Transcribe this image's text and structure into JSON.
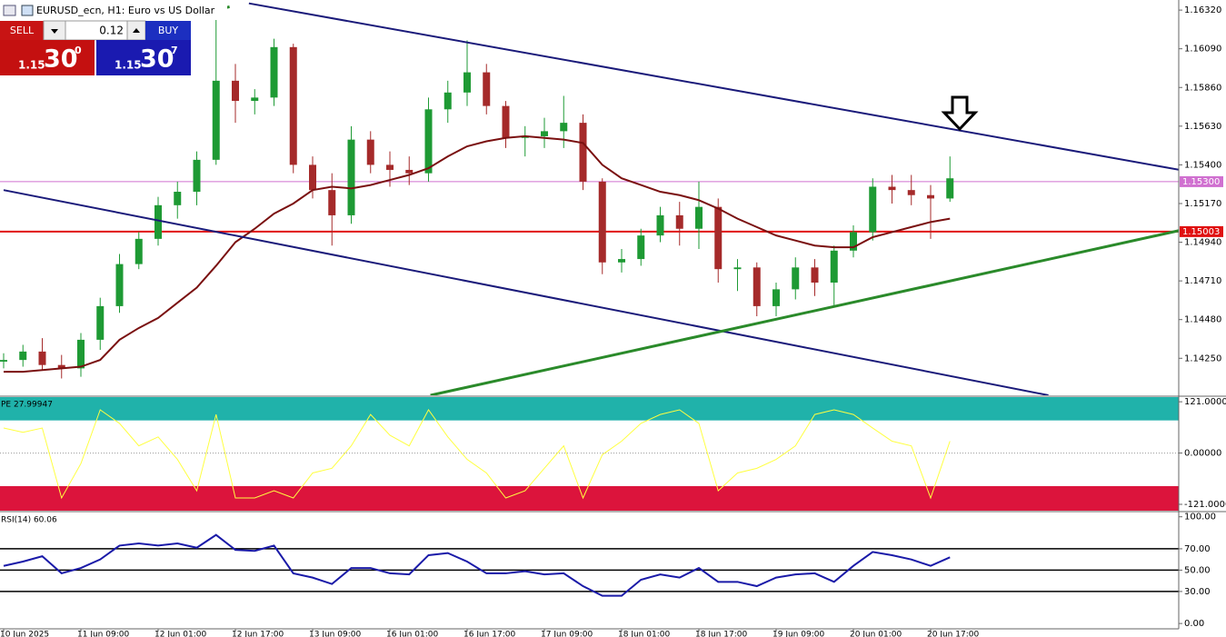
{
  "header": {
    "symbol": "EURUSD_ecn, H1:  Euro vs US Dollar"
  },
  "trade_panel": {
    "sell": "SELL",
    "lot": "0.12",
    "buy": "BUY",
    "sell_price": {
      "prefix": "1.15",
      "big": "30",
      "pip": "0"
    },
    "buy_price": {
      "prefix": "1.15",
      "big": "30",
      "pip": "7"
    }
  },
  "chart_data": [
    {
      "type": "candlestick",
      "categories": [
        "10 Jun 2025",
        null,
        null,
        null,
        "11 Jun 09:00",
        null,
        null,
        null,
        "12 Jun 01:00",
        null,
        null,
        null,
        "12 Jun 17:00",
        null,
        null,
        null,
        "13 Jun 09:00",
        null,
        null,
        null,
        "16 Jun 01:00",
        null,
        null,
        null,
        "16 Jun 17:00",
        null,
        null,
        null,
        "17 Jun 09:00",
        null,
        null,
        null,
        "18 Jun 01:00",
        null,
        null,
        null,
        "18 Jun 17:00",
        null,
        null,
        null,
        "19 Jun 09:00",
        null,
        null,
        null,
        "20 Jun 01:00",
        null,
        null,
        null,
        "20 Jun 17:00",
        null
      ],
      "open": [
        1.1423,
        1.1424,
        1.1429,
        1.1421,
        1.1419,
        1.1436,
        1.1456,
        1.1481,
        1.1496,
        1.1516,
        1.1524,
        1.1543,
        1.159,
        1.1578,
        1.158,
        1.161,
        1.154,
        1.1525,
        1.151,
        1.1555,
        1.154,
        1.1537,
        1.1535,
        1.1573,
        1.1583,
        1.1595,
        1.1575,
        1.1556,
        1.1557,
        1.156,
        1.1565,
        1.153,
        1.1482,
        1.1484,
        1.1498,
        1.151,
        1.1502,
        1.1515,
        1.1478,
        1.1479,
        1.1456,
        1.1466,
        1.1479,
        1.147,
        1.1489,
        1.15,
        1.1527,
        1.1525,
        1.1522,
        1.152
      ],
      "high": [
        1.1428,
        1.1433,
        1.1437,
        1.1427,
        1.144,
        1.1461,
        1.1487,
        1.15,
        1.1521,
        1.153,
        1.1548,
        1.163,
        1.16,
        1.1585,
        1.1615,
        1.1612,
        1.1545,
        1.1535,
        1.1563,
        1.156,
        1.1548,
        1.1545,
        1.158,
        1.159,
        1.1614,
        1.16,
        1.1578,
        1.1563,
        1.1568,
        1.1581,
        1.157,
        1.1532,
        1.149,
        1.1502,
        1.1515,
        1.1518,
        1.153,
        1.152,
        1.1484,
        1.1482,
        1.147,
        1.1485,
        1.1484,
        1.1492,
        1.1504,
        1.1532,
        1.1534,
        1.1534,
        1.1528,
        1.1545
      ],
      "low": [
        1.1419,
        1.142,
        1.1418,
        1.1413,
        1.1414,
        1.143,
        1.1452,
        1.1478,
        1.1492,
        1.1508,
        1.1516,
        1.154,
        1.1565,
        1.157,
        1.1575,
        1.1535,
        1.152,
        1.1492,
        1.1505,
        1.1535,
        1.1527,
        1.1528,
        1.153,
        1.1565,
        1.1575,
        1.157,
        1.155,
        1.1545,
        1.155,
        1.155,
        1.1525,
        1.1475,
        1.1476,
        1.148,
        1.1494,
        1.1492,
        1.149,
        1.147,
        1.1465,
        1.145,
        1.145,
        1.146,
        1.1462,
        1.1456,
        1.1485,
        1.1495,
        1.1517,
        1.1516,
        1.1496,
        1.1518
      ],
      "close": [
        1.1424,
        1.1429,
        1.1421,
        1.1419,
        1.1436,
        1.1456,
        1.1481,
        1.1496,
        1.1516,
        1.1524,
        1.1543,
        1.159,
        1.1578,
        1.158,
        1.161,
        1.154,
        1.1525,
        1.151,
        1.1555,
        1.154,
        1.1537,
        1.1535,
        1.1573,
        1.1583,
        1.1595,
        1.1575,
        1.1556,
        1.1557,
        1.156,
        1.1565,
        1.153,
        1.1482,
        1.1484,
        1.1498,
        1.151,
        1.1502,
        1.1515,
        1.1478,
        1.1479,
        1.1456,
        1.1466,
        1.1479,
        1.147,
        1.1489,
        1.15,
        1.1527,
        1.1525,
        1.1522,
        1.152,
        1.1532
      ],
      "up_color": "#1e9a34",
      "down_color": "#a52a2a",
      "ma": {
        "color": "#7a1010",
        "values": [
          1.1417,
          1.1417,
          1.1418,
          1.1419,
          1.142,
          1.1424,
          1.1436,
          1.1443,
          1.1449,
          1.1458,
          1.1467,
          1.148,
          1.1494,
          1.1502,
          1.1511,
          1.1517,
          1.1525,
          1.1527,
          1.1526,
          1.1528,
          1.1531,
          1.1534,
          1.1538,
          1.1545,
          1.1551,
          1.1554,
          1.1556,
          1.1557,
          1.1556,
          1.1555,
          1.1553,
          1.154,
          1.1532,
          1.1528,
          1.1524,
          1.1522,
          1.1519,
          1.1514,
          1.1508,
          1.1503,
          1.1498,
          1.1495,
          1.1492,
          1.1491,
          1.1491,
          1.1497,
          1.15,
          1.1503,
          1.1506,
          1.1508
        ]
      },
      "hlines": [
        {
          "value": 1.153,
          "label": "1.15300",
          "color": "#d070d0"
        },
        {
          "value": 1.15003,
          "label": "1.15003",
          "color": "#e01010"
        }
      ],
      "trendlines": [
        {
          "color": "#1a1a7a",
          "points": [
            [
              12.7,
              1.1636
            ],
            [
              60.9,
              1.1537
            ]
          ]
        },
        {
          "color": "#1a1a7a",
          "points": [
            [
              0,
              1.1525
            ],
            [
              54.1,
              1.1403
            ]
          ]
        },
        {
          "color": "#2a8a2a",
          "points": [
            [
              22.1,
              1.1403
            ],
            [
              60.9,
              1.1501
            ]
          ]
        },
        {
          "color": "#2a8a2a",
          "points": [
            [
              9.2,
              1.1627
            ],
            [
              11.7,
              1.1634
            ]
          ]
        }
      ],
      "ylim": [
        1.1403,
        1.1638
      ],
      "yticks": [
        {
          "value": 1.1632,
          "label": "1.16320"
        },
        {
          "value": 1.1609,
          "label": "1.16090"
        },
        {
          "value": 1.1586,
          "label": "1.15860"
        },
        {
          "value": 1.1563,
          "label": "1.15630"
        },
        {
          "value": 1.154,
          "label": "1.15400"
        },
        {
          "value": 1.1517,
          "label": "1.15170"
        },
        {
          "value": 1.1494,
          "label": "1.14940"
        },
        {
          "value": 1.1471,
          "label": "1.14710"
        },
        {
          "value": 1.1448,
          "label": "1.14480"
        },
        {
          "value": 1.1425,
          "label": "1.14250"
        }
      ]
    },
    {
      "type": "line",
      "label": "PE 27.99947",
      "color": "#ffff40",
      "values": [
        59,
        49,
        59,
        -106,
        -25,
        102,
        70,
        17,
        38,
        -15,
        -89,
        91,
        -106,
        -106,
        -89,
        -106,
        -47,
        -36,
        17,
        91,
        42,
        17,
        102,
        38,
        -15,
        -47,
        -106,
        -89,
        -36,
        17,
        -106,
        -4,
        28,
        70,
        91,
        102,
        70,
        -89,
        -47,
        -36,
        -15,
        17,
        91,
        102,
        91,
        59,
        28,
        17,
        -106,
        28
      ],
      "bands": [
        {
          "from": 77,
          "to": 132,
          "color": "#20b2aa"
        },
        {
          "from": -136,
          "to": -78,
          "color": "#dc143c"
        }
      ],
      "levels": [
        0
      ],
      "level_style": "dotted",
      "ylim": [
        -136,
        132
      ],
      "yticks": [
        {
          "value": 121,
          "label": "121.00000"
        },
        {
          "value": 0,
          "label": "0.00000"
        },
        {
          "value": -121,
          "label": "-121.00000"
        }
      ]
    },
    {
      "type": "line",
      "label": "RSI(14) 60.06",
      "color": "#1a1aa8",
      "values": [
        54,
        58,
        63,
        47,
        52,
        60,
        73,
        75,
        73,
        75,
        71,
        83,
        69,
        68,
        73,
        47,
        43,
        37,
        52,
        52,
        47,
        46,
        64,
        66,
        58,
        47,
        47,
        49,
        46,
        47,
        35,
        26,
        26,
        41,
        46,
        43,
        52,
        39,
        39,
        35,
        43,
        46,
        47,
        39,
        54,
        67,
        64,
        60,
        54,
        62
      ],
      "levels": [
        70,
        50,
        30
      ],
      "level_style": "solid",
      "ylim": [
        -5,
        104
      ],
      "yticks": [
        {
          "value": 100,
          "label": "100.00"
        },
        {
          "value": 70,
          "label": "70.00"
        },
        {
          "value": 50,
          "label": "50.00"
        },
        {
          "value": 30,
          "label": "30.00"
        },
        {
          "value": 0,
          "label": "0.00"
        }
      ]
    }
  ]
}
